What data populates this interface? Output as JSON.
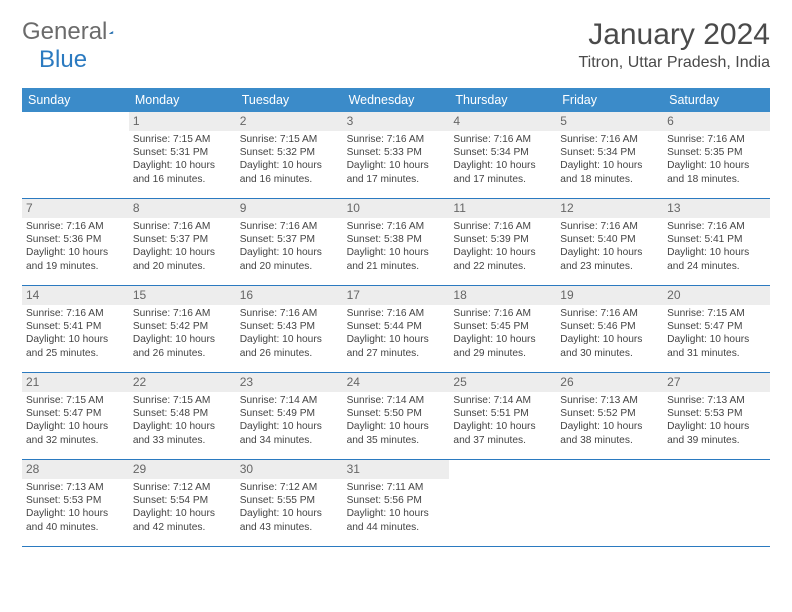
{
  "logo": {
    "text1": "General",
    "text2": "Blue"
  },
  "title": "January 2024",
  "location": "Titron, Uttar Pradesh, India",
  "day_headers": [
    "Sunday",
    "Monday",
    "Tuesday",
    "Wednesday",
    "Thursday",
    "Friday",
    "Saturday"
  ],
  "header_bg": "#3b8bc9",
  "header_fg": "#ffffff",
  "rule_color": "#2b7ac0",
  "daynum_bg": "#ededed",
  "weeks": [
    [
      {
        "n": "",
        "sr": "",
        "ss": "",
        "dl": ""
      },
      {
        "n": "1",
        "sr": "Sunrise: 7:15 AM",
        "ss": "Sunset: 5:31 PM",
        "dl": "Daylight: 10 hours and 16 minutes."
      },
      {
        "n": "2",
        "sr": "Sunrise: 7:15 AM",
        "ss": "Sunset: 5:32 PM",
        "dl": "Daylight: 10 hours and 16 minutes."
      },
      {
        "n": "3",
        "sr": "Sunrise: 7:16 AM",
        "ss": "Sunset: 5:33 PM",
        "dl": "Daylight: 10 hours and 17 minutes."
      },
      {
        "n": "4",
        "sr": "Sunrise: 7:16 AM",
        "ss": "Sunset: 5:34 PM",
        "dl": "Daylight: 10 hours and 17 minutes."
      },
      {
        "n": "5",
        "sr": "Sunrise: 7:16 AM",
        "ss": "Sunset: 5:34 PM",
        "dl": "Daylight: 10 hours and 18 minutes."
      },
      {
        "n": "6",
        "sr": "Sunrise: 7:16 AM",
        "ss": "Sunset: 5:35 PM",
        "dl": "Daylight: 10 hours and 18 minutes."
      }
    ],
    [
      {
        "n": "7",
        "sr": "Sunrise: 7:16 AM",
        "ss": "Sunset: 5:36 PM",
        "dl": "Daylight: 10 hours and 19 minutes."
      },
      {
        "n": "8",
        "sr": "Sunrise: 7:16 AM",
        "ss": "Sunset: 5:37 PM",
        "dl": "Daylight: 10 hours and 20 minutes."
      },
      {
        "n": "9",
        "sr": "Sunrise: 7:16 AM",
        "ss": "Sunset: 5:37 PM",
        "dl": "Daylight: 10 hours and 20 minutes."
      },
      {
        "n": "10",
        "sr": "Sunrise: 7:16 AM",
        "ss": "Sunset: 5:38 PM",
        "dl": "Daylight: 10 hours and 21 minutes."
      },
      {
        "n": "11",
        "sr": "Sunrise: 7:16 AM",
        "ss": "Sunset: 5:39 PM",
        "dl": "Daylight: 10 hours and 22 minutes."
      },
      {
        "n": "12",
        "sr": "Sunrise: 7:16 AM",
        "ss": "Sunset: 5:40 PM",
        "dl": "Daylight: 10 hours and 23 minutes."
      },
      {
        "n": "13",
        "sr": "Sunrise: 7:16 AM",
        "ss": "Sunset: 5:41 PM",
        "dl": "Daylight: 10 hours and 24 minutes."
      }
    ],
    [
      {
        "n": "14",
        "sr": "Sunrise: 7:16 AM",
        "ss": "Sunset: 5:41 PM",
        "dl": "Daylight: 10 hours and 25 minutes."
      },
      {
        "n": "15",
        "sr": "Sunrise: 7:16 AM",
        "ss": "Sunset: 5:42 PM",
        "dl": "Daylight: 10 hours and 26 minutes."
      },
      {
        "n": "16",
        "sr": "Sunrise: 7:16 AM",
        "ss": "Sunset: 5:43 PM",
        "dl": "Daylight: 10 hours and 26 minutes."
      },
      {
        "n": "17",
        "sr": "Sunrise: 7:16 AM",
        "ss": "Sunset: 5:44 PM",
        "dl": "Daylight: 10 hours and 27 minutes."
      },
      {
        "n": "18",
        "sr": "Sunrise: 7:16 AM",
        "ss": "Sunset: 5:45 PM",
        "dl": "Daylight: 10 hours and 29 minutes."
      },
      {
        "n": "19",
        "sr": "Sunrise: 7:16 AM",
        "ss": "Sunset: 5:46 PM",
        "dl": "Daylight: 10 hours and 30 minutes."
      },
      {
        "n": "20",
        "sr": "Sunrise: 7:15 AM",
        "ss": "Sunset: 5:47 PM",
        "dl": "Daylight: 10 hours and 31 minutes."
      }
    ],
    [
      {
        "n": "21",
        "sr": "Sunrise: 7:15 AM",
        "ss": "Sunset: 5:47 PM",
        "dl": "Daylight: 10 hours and 32 minutes."
      },
      {
        "n": "22",
        "sr": "Sunrise: 7:15 AM",
        "ss": "Sunset: 5:48 PM",
        "dl": "Daylight: 10 hours and 33 minutes."
      },
      {
        "n": "23",
        "sr": "Sunrise: 7:14 AM",
        "ss": "Sunset: 5:49 PM",
        "dl": "Daylight: 10 hours and 34 minutes."
      },
      {
        "n": "24",
        "sr": "Sunrise: 7:14 AM",
        "ss": "Sunset: 5:50 PM",
        "dl": "Daylight: 10 hours and 35 minutes."
      },
      {
        "n": "25",
        "sr": "Sunrise: 7:14 AM",
        "ss": "Sunset: 5:51 PM",
        "dl": "Daylight: 10 hours and 37 minutes."
      },
      {
        "n": "26",
        "sr": "Sunrise: 7:13 AM",
        "ss": "Sunset: 5:52 PM",
        "dl": "Daylight: 10 hours and 38 minutes."
      },
      {
        "n": "27",
        "sr": "Sunrise: 7:13 AM",
        "ss": "Sunset: 5:53 PM",
        "dl": "Daylight: 10 hours and 39 minutes."
      }
    ],
    [
      {
        "n": "28",
        "sr": "Sunrise: 7:13 AM",
        "ss": "Sunset: 5:53 PM",
        "dl": "Daylight: 10 hours and 40 minutes."
      },
      {
        "n": "29",
        "sr": "Sunrise: 7:12 AM",
        "ss": "Sunset: 5:54 PM",
        "dl": "Daylight: 10 hours and 42 minutes."
      },
      {
        "n": "30",
        "sr": "Sunrise: 7:12 AM",
        "ss": "Sunset: 5:55 PM",
        "dl": "Daylight: 10 hours and 43 minutes."
      },
      {
        "n": "31",
        "sr": "Sunrise: 7:11 AM",
        "ss": "Sunset: 5:56 PM",
        "dl": "Daylight: 10 hours and 44 minutes."
      },
      {
        "n": "",
        "sr": "",
        "ss": "",
        "dl": ""
      },
      {
        "n": "",
        "sr": "",
        "ss": "",
        "dl": ""
      },
      {
        "n": "",
        "sr": "",
        "ss": "",
        "dl": ""
      }
    ]
  ]
}
